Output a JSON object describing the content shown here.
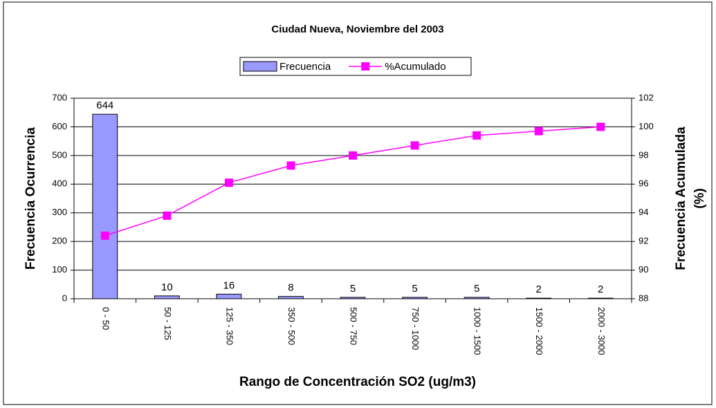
{
  "chart_data": {
    "type": "bar_line",
    "title": "Ciudad Nueva, Noviembre del 2003",
    "x_label": "Rango de Concentración SO2 (ug/m3)",
    "y_label": "Frecuencia Ocurrencia",
    "y2_label": [
      "Frecuencia Acumulada",
      "(%)"
    ],
    "categories": [
      "0 - 50",
      "50 - 125",
      "125 - 350",
      "350 - 500",
      "500 - 750",
      "750 - 1000",
      "1000 - 1500",
      "1500 - 2000",
      "2000 - 3000"
    ],
    "series": [
      {
        "name": "Frecuencia",
        "type": "bar",
        "color": "#9999ff",
        "values": [
          644,
          10,
          16,
          8,
          5,
          5,
          5,
          2,
          2
        ]
      },
      {
        "name": "%Acumulado",
        "type": "line",
        "axis": "y2",
        "color": "#ff00ff",
        "values": [
          92.4,
          93.8,
          96.1,
          97.3,
          98.0,
          98.7,
          99.4,
          99.7,
          100
        ]
      }
    ],
    "ylim": [
      0,
      700
    ],
    "yticks": [
      0,
      100,
      200,
      300,
      400,
      500,
      600,
      700
    ],
    "y2lim": [
      88,
      102
    ],
    "y2ticks": [
      88,
      90,
      92,
      94,
      96,
      98,
      100,
      102
    ],
    "grid": true,
    "legend": "top"
  }
}
